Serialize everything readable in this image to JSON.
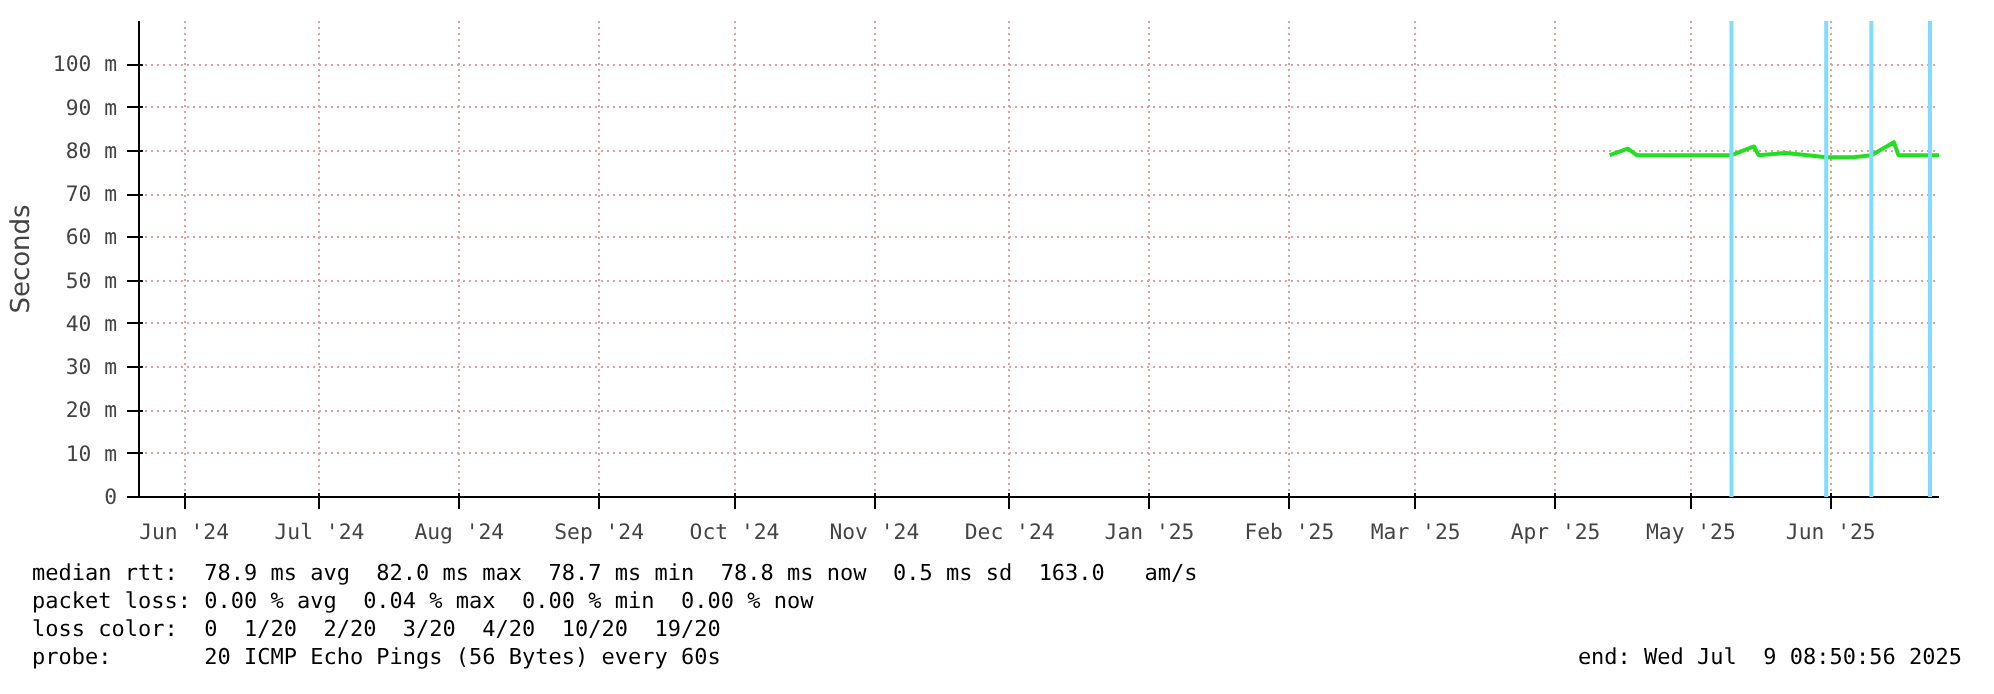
{
  "chart_data": {
    "type": "line",
    "ylabel": "Seconds",
    "x": [
      "2025-04-27",
      "2025-05-01",
      "2025-05-03",
      "2025-05-10",
      "2025-05-17",
      "2025-05-24",
      "2025-05-29",
      "2025-05-30",
      "2025-06-05",
      "2025-06-10",
      "2025-06-14",
      "2025-06-20",
      "2025-06-24",
      "2025-06-29",
      "2025-06-30",
      "2025-07-04",
      "2025-07-09"
    ],
    "series": [
      {
        "color": "#20e020",
        "values": [
          79,
          80.5,
          79,
          79,
          79,
          79,
          81,
          79,
          79.5,
          79,
          78.5,
          78.5,
          79,
          82,
          79,
          79,
          79
        ]
      }
    ],
    "xlim": [
      "2024-06-05",
      "2025-07-09"
    ],
    "xticks": [
      {
        "value": "2024-06-15",
        "label": "Jun '24"
      },
      {
        "value": "2024-07-15",
        "label": "Jul '24"
      },
      {
        "value": "2024-08-15",
        "label": "Aug '24"
      },
      {
        "value": "2024-09-15",
        "label": "Sep '24"
      },
      {
        "value": "2024-10-15",
        "label": "Oct '24"
      },
      {
        "value": "2024-11-15",
        "label": "Nov '24"
      },
      {
        "value": "2024-12-15",
        "label": "Dec '24"
      },
      {
        "value": "2025-01-15",
        "label": "Jan '25"
      },
      {
        "value": "2025-02-15",
        "label": "Feb '25"
      },
      {
        "value": "2025-03-15",
        "label": "Mar '25"
      },
      {
        "value": "2025-04-15",
        "label": "Apr '25"
      },
      {
        "value": "2025-05-15",
        "label": "May '25"
      },
      {
        "value": "2025-06-15",
        "label": "Jun '25"
      }
    ],
    "ylim": [
      0,
      110
    ],
    "yticks": [
      0,
      {
        "value": 10,
        "label": "10 m"
      },
      {
        "value": 20,
        "label": "20 m"
      },
      {
        "value": 30,
        "label": "30 m"
      },
      {
        "value": 40,
        "label": "40 m"
      },
      {
        "value": 50,
        "label": "50 m"
      },
      {
        "value": 60,
        "label": "60 m"
      },
      {
        "value": 70,
        "label": "70 m"
      },
      {
        "value": 80,
        "label": "80 m"
      },
      {
        "value": 90,
        "label": "90 m"
      },
      {
        "value": 100,
        "label": "100 m"
      }
    ],
    "ref_lines": [
      {
        "axis": "x",
        "value": "2025-05-24",
        "color": "#7fdcff"
      },
      {
        "axis": "x",
        "value": "2025-06-14",
        "color": "#7fdcff"
      },
      {
        "axis": "x",
        "value": "2025-06-24",
        "color": "#7fdcff"
      },
      {
        "axis": "x",
        "value": "2025-07-07",
        "color": "#7fdcff"
      }
    ],
    "grid": true,
    "line_style": "solid",
    "annotations": [
      "median rtt:  78.9 ms avg  82.0 ms max  78.7 ms min  78.8 ms now  0.5 ms sd  163.0   am/s",
      "packet loss: 0.00 % avg  0.04 % max  0.00 % min  0.00 % now",
      "loss color:  0  1/20  2/20  3/20  4/20  10/20  19/20",
      "probe:       20 ICMP Echo Pings (56 Bytes) every 60s",
      "end: Wed Jul  9 08:50:56 2025"
    ]
  }
}
